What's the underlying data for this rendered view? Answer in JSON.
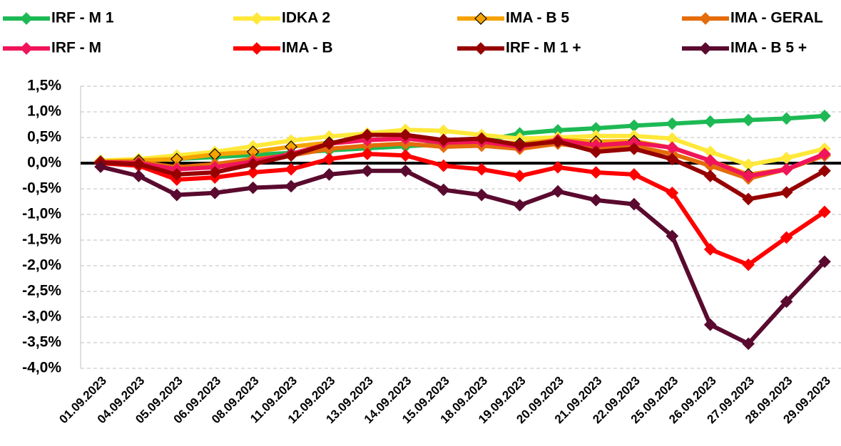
{
  "chart_data": {
    "type": "line",
    "categories": [
      "01.09.2023",
      "04.09.2023",
      "05.09.2023",
      "06.09.2023",
      "08.09.2023",
      "11.09.2023",
      "12.09.2023",
      "13.09.2023",
      "14.09.2023",
      "15.09.2023",
      "18.09.2023",
      "19.09.2023",
      "20.09.2023",
      "21.09.2023",
      "22.09.2023",
      "25.09.2023",
      "26.09.2023",
      "27.09.2023",
      "28.09.2023",
      "29.09.2023"
    ],
    "series": [
      {
        "name": "IRF - M 1",
        "color": "#1DB954",
        "values": [
          0.02,
          0.05,
          0.08,
          0.12,
          0.16,
          0.2,
          0.25,
          0.29,
          0.33,
          0.37,
          0.42,
          0.58,
          0.64,
          0.68,
          0.73,
          0.77,
          0.81,
          0.84,
          0.87,
          0.92
        ]
      },
      {
        "name": "IDKA 2",
        "color": "#FFE83A",
        "values": [
          0.05,
          0.08,
          0.15,
          0.22,
          0.33,
          0.44,
          0.52,
          0.58,
          0.65,
          0.63,
          0.55,
          0.48,
          0.5,
          0.53,
          0.53,
          0.48,
          0.22,
          -0.03,
          0.1,
          0.28
        ]
      },
      {
        "name": "IMA - B 5",
        "color": "#F5A300",
        "marker_edge": "#000000",
        "values": [
          0.03,
          0.05,
          0.08,
          0.17,
          0.22,
          0.32,
          0.4,
          0.45,
          0.48,
          0.45,
          0.45,
          0.38,
          0.45,
          0.42,
          0.43,
          0.3,
          0.05,
          -0.22,
          -0.12,
          0.15
        ]
      },
      {
        "name": "IMA - GERAL",
        "color": "#E46C0A",
        "values": [
          0.02,
          0.02,
          -0.08,
          -0.02,
          0.08,
          0.15,
          0.28,
          0.34,
          0.38,
          0.32,
          0.34,
          0.28,
          0.38,
          0.28,
          0.33,
          0.18,
          -0.05,
          -0.3,
          -0.12,
          0.15
        ]
      },
      {
        "name": "IRF - M",
        "color": "#F0145A",
        "values": [
          0.02,
          0.0,
          -0.12,
          -0.08,
          0.03,
          0.18,
          0.38,
          0.45,
          0.48,
          0.4,
          0.42,
          0.32,
          0.45,
          0.35,
          0.4,
          0.3,
          0.05,
          -0.25,
          -0.12,
          0.18
        ]
      },
      {
        "name": "IMA - B",
        "color": "#FF0000",
        "values": [
          0.0,
          -0.05,
          -0.32,
          -0.28,
          -0.18,
          -0.12,
          0.08,
          0.18,
          0.15,
          -0.05,
          -0.12,
          -0.25,
          -0.08,
          -0.18,
          -0.22,
          -0.58,
          -1.68,
          -1.98,
          -1.45,
          -0.95
        ]
      },
      {
        "name": "IRF - M 1 +",
        "color": "#960000",
        "values": [
          0.01,
          -0.02,
          -0.22,
          -0.18,
          -0.02,
          0.15,
          0.38,
          0.55,
          0.55,
          0.45,
          0.48,
          0.35,
          0.42,
          0.22,
          0.28,
          0.08,
          -0.25,
          -0.7,
          -0.57,
          -0.15
        ]
      },
      {
        "name": "IMA - B 5 +",
        "color": "#5A0A2E",
        "values": [
          -0.07,
          -0.25,
          -0.62,
          -0.58,
          -0.48,
          -0.45,
          -0.22,
          -0.15,
          -0.15,
          -0.52,
          -0.62,
          -0.82,
          -0.55,
          -0.72,
          -0.8,
          -1.42,
          -3.15,
          -3.52,
          -2.7,
          -1.92
        ]
      }
    ],
    "ylim": [
      -4.0,
      1.5
    ],
    "yticks": [
      {
        "value": -4.0,
        "label": "-4,0%"
      },
      {
        "value": -3.5,
        "label": "-3,5%"
      },
      {
        "value": -3.0,
        "label": "-3,0%"
      },
      {
        "value": -2.5,
        "label": "-2,5%"
      },
      {
        "value": -2.0,
        "label": "-2,0%"
      },
      {
        "value": -1.5,
        "label": "-1,5%"
      },
      {
        "value": -1.0,
        "label": "-1,0%"
      },
      {
        "value": -0.5,
        "label": "-0,5%"
      },
      {
        "value": 0.0,
        "label": "0,0%"
      },
      {
        "value": 0.5,
        "label": "0,5%"
      },
      {
        "value": 1.0,
        "label": "1,0%"
      },
      {
        "value": 1.5,
        "label": "1,5%"
      }
    ],
    "grid": true,
    "zero_line": true,
    "legend": "top"
  }
}
